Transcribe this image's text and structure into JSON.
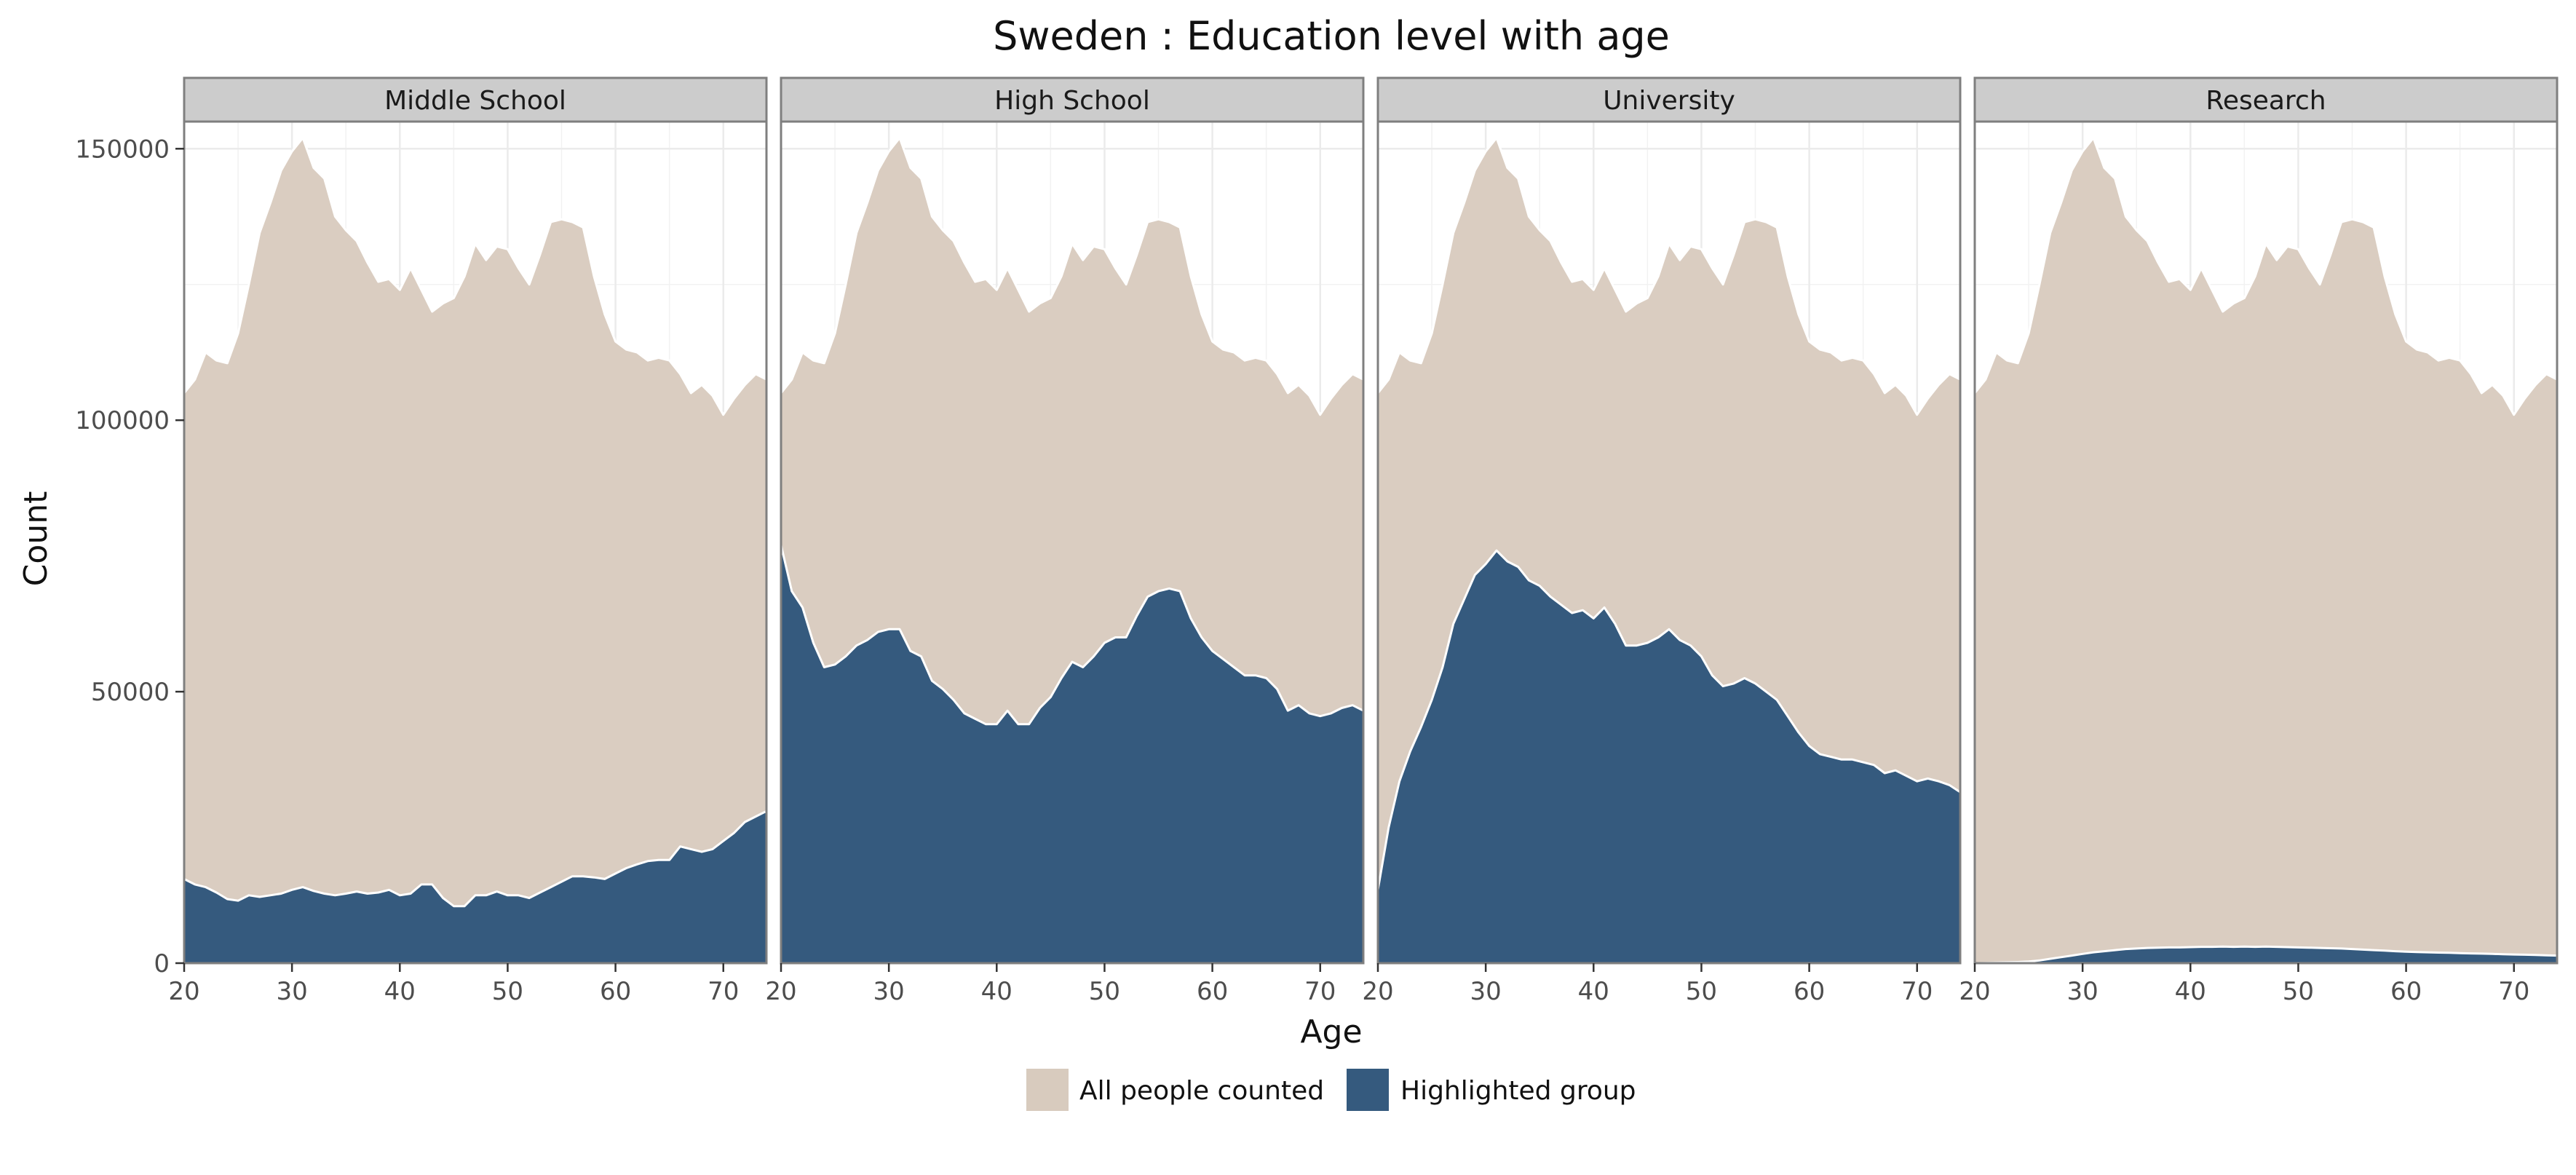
{
  "chart_data": {
    "type": "area",
    "title": "Sweden : Education level with age",
    "xlabel": "Age",
    "ylabel": "Count",
    "xlim": [
      20,
      74
    ],
    "ylim": [
      0,
      155000
    ],
    "x_ticks": [
      20,
      30,
      40,
      50,
      60,
      70
    ],
    "x_tick_labels": [
      "20",
      "30",
      "40",
      "50",
      "60",
      "70"
    ],
    "y_ticks": [
      0,
      50000,
      100000,
      150000
    ],
    "y_tick_labels": [
      "0",
      "50000",
      "100000",
      "150000"
    ],
    "grid": true,
    "legend_position": "bottom",
    "colors": {
      "all": "#d8cbbe",
      "highlight": "#355a7e",
      "strip": "#cccccc",
      "grid": "#ebebeb"
    },
    "legend": [
      {
        "key": "all",
        "label": "All people counted"
      },
      {
        "key": "highlight",
        "label": "Highlighted group"
      }
    ],
    "ages": [
      20,
      21,
      22,
      23,
      24,
      25,
      26,
      27,
      28,
      29,
      30,
      31,
      32,
      33,
      34,
      35,
      36,
      37,
      38,
      39,
      40,
      41,
      42,
      43,
      44,
      45,
      46,
      47,
      48,
      49,
      50,
      51,
      52,
      53,
      54,
      55,
      56,
      57,
      58,
      59,
      60,
      61,
      62,
      63,
      64,
      65,
      66,
      67,
      68,
      69,
      70,
      71,
      72,
      73,
      74
    ],
    "all_people": [
      105000,
      107500,
      112500,
      111000,
      110500,
      116000,
      125000,
      134500,
      140000,
      146000,
      149500,
      152000,
      146500,
      144500,
      137500,
      135000,
      133000,
      129000,
      125500,
      126000,
      124000,
      128000,
      124000,
      120000,
      121500,
      122500,
      126500,
      132500,
      129500,
      132000,
      131500,
      128000,
      125000,
      130500,
      136500,
      137000,
      136500,
      135500,
      126500,
      119500,
      114500,
      113000,
      112500,
      111000,
      111500,
      111000,
      108500,
      105000,
      106500,
      104500,
      101000,
      104000,
      106500,
      108500,
      107500
    ],
    "facets": [
      {
        "name": "Middle School",
        "values": [
          15500,
          14500,
          14000,
          13000,
          11800,
          11500,
          12500,
          12200,
          12500,
          12800,
          13500,
          14000,
          13300,
          12800,
          12500,
          12800,
          13200,
          12800,
          13000,
          13500,
          12500,
          12800,
          14500,
          14500,
          12000,
          10500,
          10500,
          12500,
          12500,
          13200,
          12500,
          12500,
          12000,
          13000,
          14000,
          15000,
          16000,
          16000,
          15800,
          15500,
          16500,
          17500,
          18200,
          18800,
          19000,
          19000,
          21500,
          21000,
          20500,
          21000,
          22500,
          24000,
          26000,
          27000,
          28000
        ]
      },
      {
        "name": "High School",
        "values": [
          77000,
          68500,
          65500,
          59000,
          54500,
          55000,
          56500,
          58500,
          59500,
          61000,
          61500,
          61500,
          57500,
          56500,
          52000,
          50500,
          48500,
          46000,
          45000,
          44000,
          44000,
          46500,
          44000,
          44000,
          47000,
          49000,
          52500,
          55500,
          54500,
          56500,
          59000,
          60000,
          60000,
          64000,
          67500,
          68500,
          69000,
          68500,
          63500,
          60000,
          57500,
          56000,
          54500,
          53000,
          53000,
          52500,
          50500,
          46500,
          47500,
          46000,
          45500,
          46000,
          47000,
          47500,
          46500
        ]
      },
      {
        "name": "University",
        "values": [
          13500,
          25000,
          33500,
          39000,
          43500,
          48500,
          54500,
          62500,
          67000,
          71500,
          73500,
          76000,
          74000,
          73000,
          70500,
          69500,
          67500,
          66000,
          64500,
          65000,
          63500,
          65500,
          62500,
          58500,
          58500,
          59000,
          60000,
          61500,
          59500,
          58500,
          56500,
          53000,
          51000,
          51500,
          52500,
          51500,
          50000,
          48500,
          45500,
          42500,
          40000,
          38500,
          38000,
          37500,
          37500,
          37000,
          36500,
          35000,
          35500,
          34500,
          33500,
          34000,
          33500,
          32800,
          31500
        ]
      },
      {
        "name": "Research",
        "values": [
          0,
          50,
          100,
          150,
          200,
          300,
          500,
          800,
          1100,
          1400,
          1700,
          2000,
          2200,
          2400,
          2600,
          2700,
          2800,
          2850,
          2900,
          2900,
          2950,
          3000,
          3000,
          3050,
          3000,
          3050,
          3000,
          3050,
          3000,
          2950,
          2900,
          2850,
          2800,
          2750,
          2700,
          2600,
          2500,
          2400,
          2300,
          2200,
          2100,
          2050,
          2000,
          1950,
          1900,
          1850,
          1800,
          1750,
          1700,
          1650,
          1600,
          1550,
          1500,
          1450,
          1400
        ]
      }
    ]
  }
}
